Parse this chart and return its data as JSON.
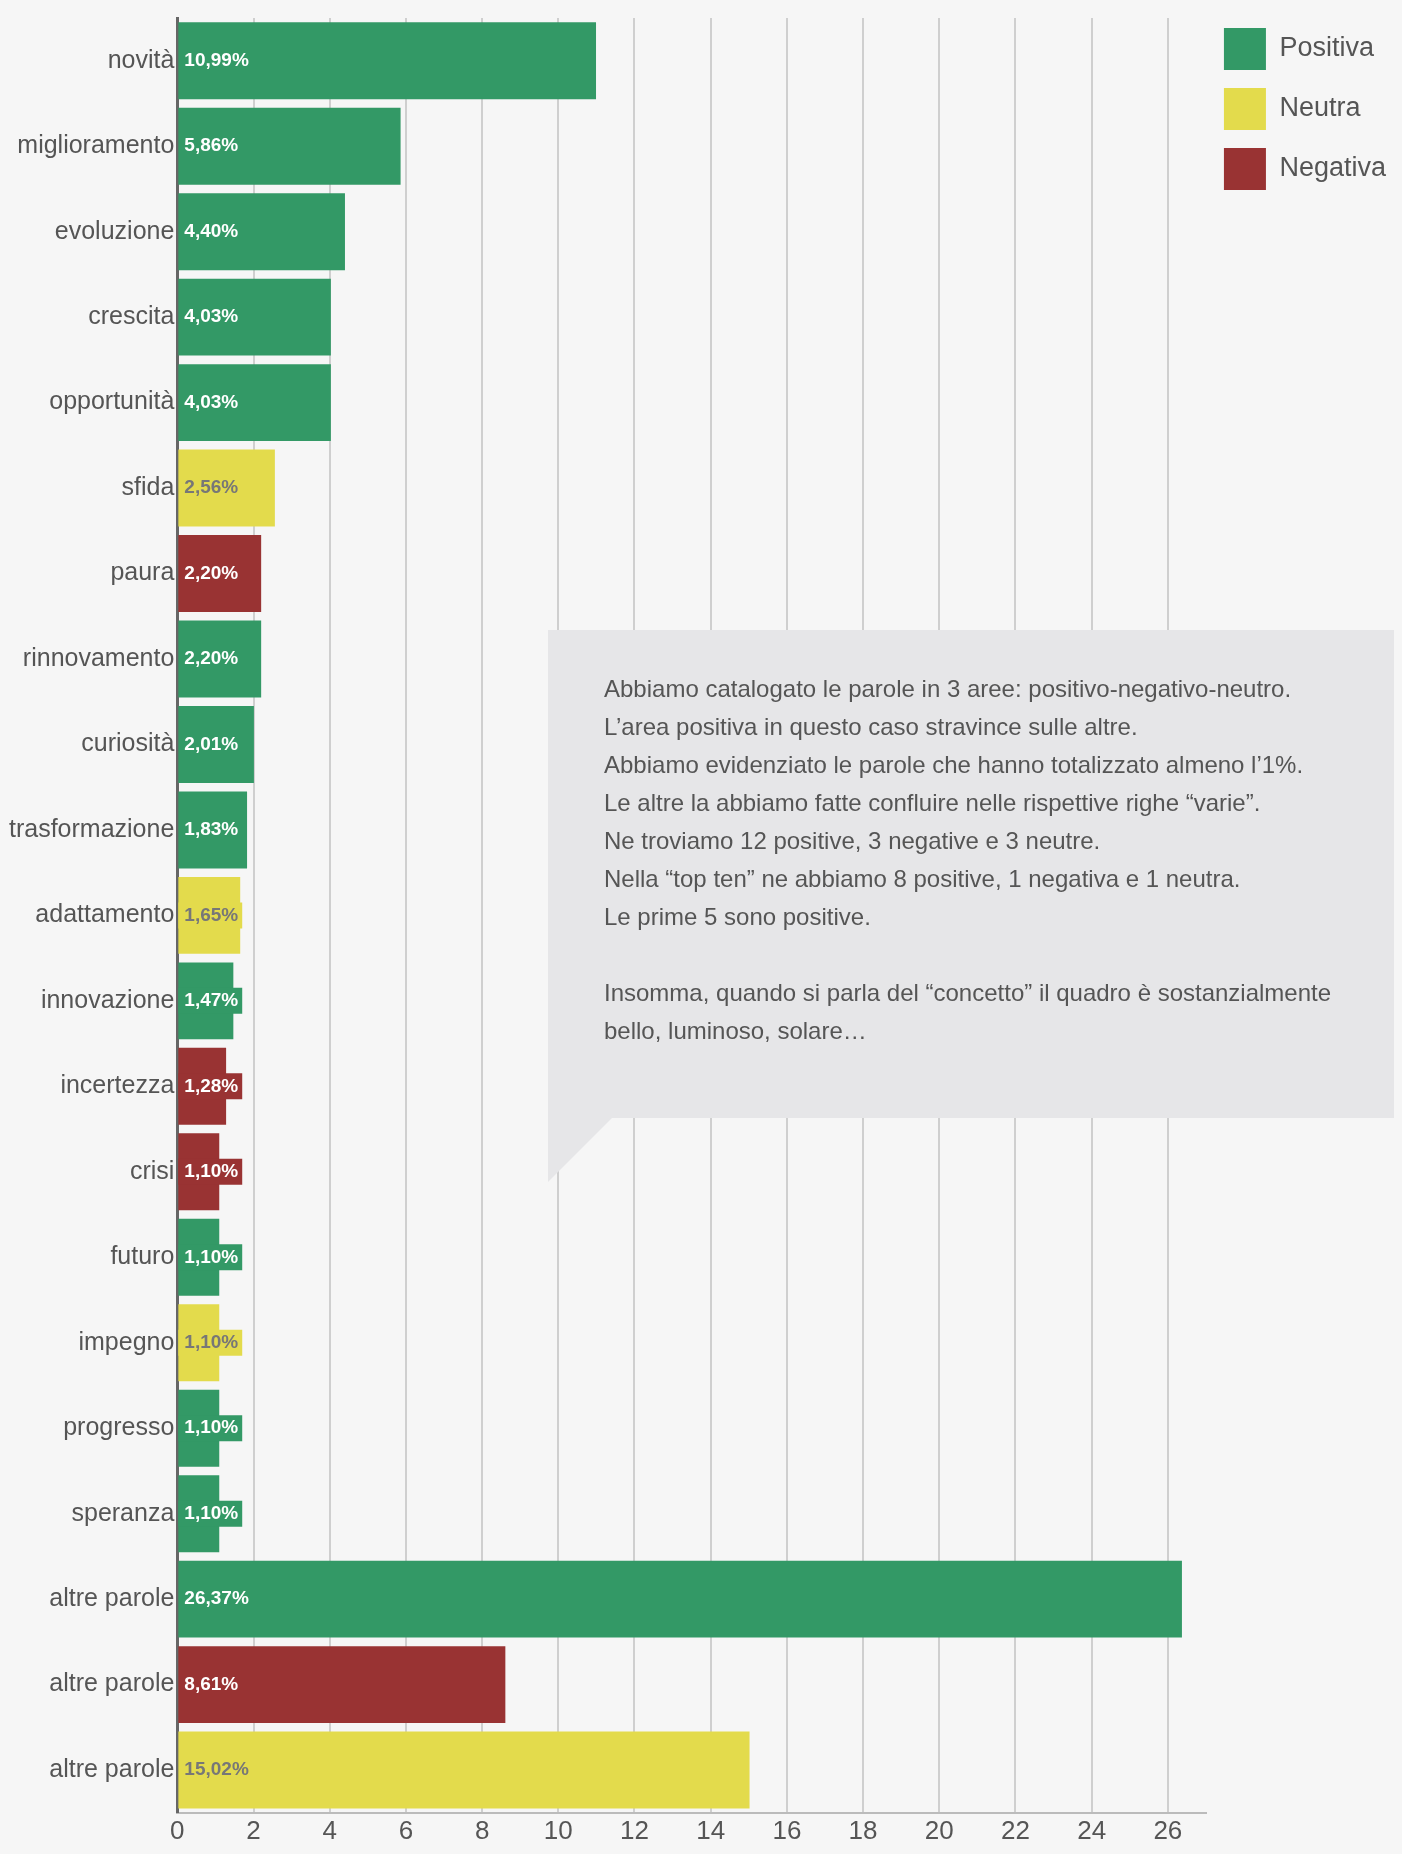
{
  "chart_data": {
    "type": "bar",
    "orientation": "horizontal",
    "stacked": true,
    "categories": [
      "novità",
      "miglioramento",
      "evoluzione",
      "crescita",
      "opportunità",
      "sfida",
      "paura",
      "rinnovamento",
      "curiosità",
      "trasformazione",
      "adattamento",
      "innovazione",
      "incertezza",
      "crisi",
      "futuro",
      "impegno",
      "progresso",
      "speranza",
      "altre parole",
      "altre parole",
      "altre parole"
    ],
    "series": [
      {
        "name": "Positiva",
        "color": "#339966",
        "values": [
          10.99,
          5.86,
          4.4,
          4.03,
          4.03,
          null,
          null,
          2.2,
          2.01,
          1.83,
          null,
          1.47,
          null,
          null,
          1.1,
          null,
          1.1,
          1.1,
          26.37,
          null,
          null
        ],
        "value_labels": [
          "10,99%",
          "5,86%",
          "4,40%",
          "4,03%",
          "4,03%",
          null,
          null,
          "2,20%",
          "2,01%",
          "1,83%",
          null,
          "1,47%",
          null,
          null,
          "1,10%",
          null,
          "1,10%",
          "1,10%",
          "26,37%",
          null,
          null
        ]
      },
      {
        "name": "Neutra",
        "color": "#e3db4c",
        "values": [
          null,
          null,
          null,
          null,
          null,
          2.56,
          null,
          null,
          null,
          null,
          1.65,
          null,
          null,
          null,
          null,
          1.1,
          null,
          null,
          null,
          null,
          15.02
        ],
        "value_labels": [
          null,
          null,
          null,
          null,
          null,
          "2,56%",
          null,
          null,
          null,
          null,
          "1,65%",
          null,
          null,
          null,
          null,
          "1,10%",
          null,
          null,
          null,
          null,
          "15,02%"
        ]
      },
      {
        "name": "Negativa",
        "color": "#993333",
        "values": [
          null,
          null,
          null,
          null,
          null,
          null,
          2.2,
          null,
          null,
          null,
          null,
          null,
          1.28,
          1.1,
          null,
          null,
          null,
          null,
          null,
          8.61,
          null
        ],
        "value_labels": [
          null,
          null,
          null,
          null,
          null,
          null,
          "2,20%",
          null,
          null,
          null,
          null,
          null,
          "1,28%",
          "1,10%",
          null,
          null,
          null,
          null,
          null,
          "8,61%",
          null
        ]
      }
    ],
    "xlim": [
      0,
      27
    ],
    "xticks": [
      0,
      2,
      4,
      6,
      8,
      10,
      12,
      14,
      16,
      18,
      20,
      22,
      24,
      26
    ],
    "grid": "x",
    "legend": "top right",
    "annotations": [
      "Abbiamo catalogato le parole in 3 aree: positivo-negativo-neutro.\nL’area positiva in questo caso stravince sulle altre.\nAbbiamo evidenziato le parole che hanno totalizzato almeno l’1%.\nLe altre la abbiamo fatte confluire nelle rispettive righe “varie”.\nNe troviamo 12 positive, 3 negative e 3 neutre.\nNella “top ten” ne abbiamo 8 positive, 1 negativa e 1 neutra.\nLe prime 5 sono positive.",
      "Insomma, quando si parla del “concetto” il quadro è sostanzialmente\nbello, luminoso, solare…"
    ]
  }
}
